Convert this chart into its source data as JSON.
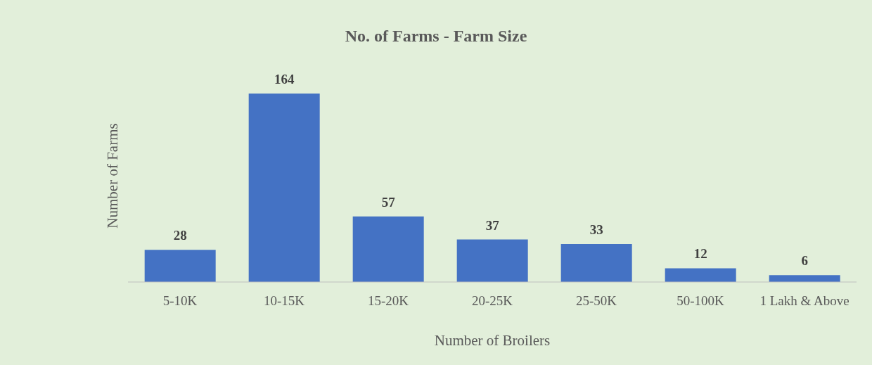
{
  "chart_data": {
    "type": "bar",
    "title": "No. of Farms - Farm Size",
    "xlabel": "Number of Broilers",
    "ylabel": "Number of Farms",
    "categories": [
      "5-10K",
      "10-15K",
      "15-20K",
      "20-25K",
      "25-50K",
      "50-100K",
      "1 Lakh & Above"
    ],
    "values": [
      28,
      164,
      57,
      37,
      33,
      12,
      6
    ],
    "color": "#4472c4",
    "data_labels": true,
    "grid": false,
    "legend": false
  }
}
